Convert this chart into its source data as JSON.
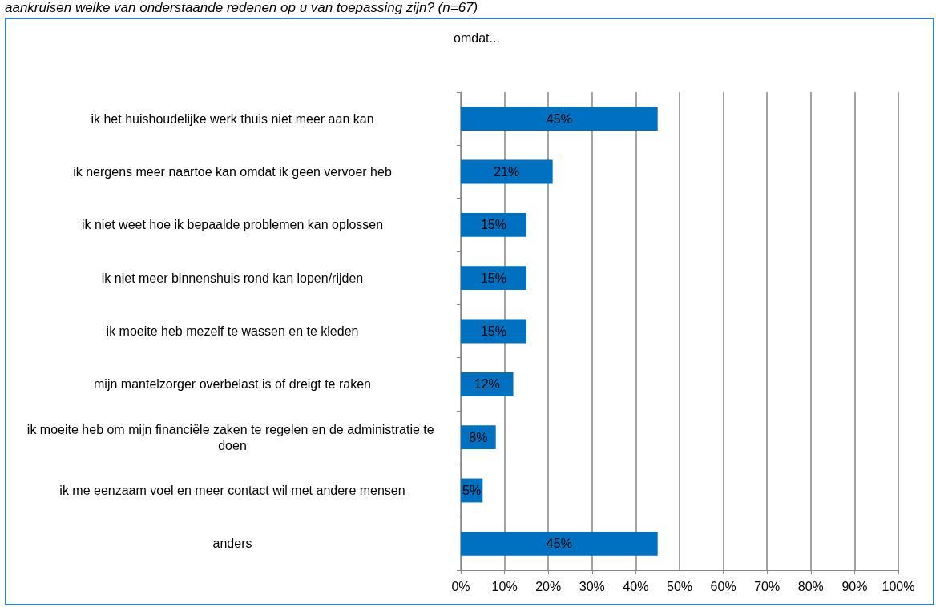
{
  "chart_data": {
    "type": "bar",
    "orientation": "horizontal",
    "title": "omdat...",
    "annotations": [
      "aankruisen welke van onderstaande redenen op u van toepassing zijn? (n=67)"
    ],
    "categories": [
      "ik het huishoudelijke werk thuis niet meer aan kan",
      "ik nergens meer naartoe kan omdat ik geen vervoer heb",
      "ik niet weet hoe ik bepaalde problemen kan oplossen",
      "ik niet meer binnenshuis rond kan lopen/rijden",
      "ik moeite heb mezelf te wassen en te kleden",
      "mijn mantelzorger overbelast is of dreigt te raken",
      "ik moeite heb om mijn financiële zaken te regelen en de administratie te doen",
      "ik me eenzaam voel en meer contact wil met andere mensen",
      "anders"
    ],
    "values": [
      45,
      21,
      15,
      15,
      15,
      12,
      8,
      5,
      45
    ],
    "value_labels": [
      "45%",
      "21%",
      "15%",
      "15%",
      "15%",
      "12%",
      "8%",
      "5%",
      "45%"
    ],
    "color": "#0070c0",
    "xlim": [
      0,
      100
    ],
    "xticks": [
      {
        "value": 0,
        "label": "0%"
      },
      {
        "value": 10,
        "label": "10%"
      },
      {
        "value": 20,
        "label": "20%"
      },
      {
        "value": 30,
        "label": "30%"
      },
      {
        "value": 40,
        "label": "40%"
      },
      {
        "value": 50,
        "label": "50%"
      },
      {
        "value": 60,
        "label": "60%"
      },
      {
        "value": 70,
        "label": "70%"
      },
      {
        "value": 80,
        "label": "80%"
      },
      {
        "value": 90,
        "label": "90%"
      },
      {
        "value": 100,
        "label": "100%"
      }
    ],
    "grid": "x"
  }
}
